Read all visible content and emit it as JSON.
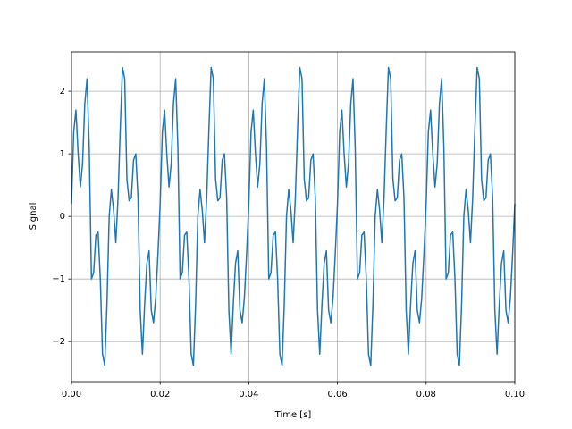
{
  "chart_data": {
    "type": "line",
    "xlabel": "Time [s]",
    "ylabel": "Signal",
    "x": [
      0,
      0.0005,
      0.001,
      0.0015,
      0.002,
      0.0025,
      0.003,
      0.0035,
      0.004,
      0.0045,
      0.005,
      0.0055,
      0.006,
      0.0065,
      0.007,
      0.0075,
      0.008,
      0.0085,
      0.009,
      0.0095,
      0.01,
      0.0105,
      0.011,
      0.0115,
      0.012,
      0.0125,
      0.013,
      0.0135,
      0.014,
      0.0145,
      0.015,
      0.0155,
      0.016,
      0.0165,
      0.017,
      0.0175,
      0.018,
      0.0185,
      0.019,
      0.0195,
      0.02,
      0.0205,
      0.021,
      0.0215,
      0.022,
      0.0225,
      0.023,
      0.0235,
      0.024,
      0.0245,
      0.025,
      0.0255,
      0.026,
      0.0265,
      0.027,
      0.0275,
      0.028,
      0.0285,
      0.029,
      0.0295,
      0.03,
      0.0305,
      0.031,
      0.0315,
      0.032,
      0.0325,
      0.033,
      0.0335,
      0.034,
      0.0345,
      0.035,
      0.0355,
      0.036,
      0.0365,
      0.037,
      0.0375,
      0.038,
      0.0385,
      0.039,
      0.0395,
      0.04,
      0.0405,
      0.041,
      0.0415,
      0.042,
      0.0425,
      0.043,
      0.0435,
      0.044,
      0.0445,
      0.045,
      0.0455,
      0.046,
      0.0465,
      0.047,
      0.0475,
      0.048,
      0.0485,
      0.049,
      0.0495,
      0.05,
      0.0505,
      0.051,
      0.0515,
      0.052,
      0.0525,
      0.053,
      0.0535,
      0.054,
      0.0545,
      0.055,
      0.0555,
      0.056,
      0.0565,
      0.057,
      0.0575,
      0.058,
      0.0585,
      0.059,
      0.0595,
      0.06,
      0.0605,
      0.061,
      0.0615,
      0.062,
      0.0625,
      0.063,
      0.0635,
      0.064,
      0.0645,
      0.065,
      0.0655,
      0.066,
      0.0665,
      0.067,
      0.0675,
      0.068,
      0.0685,
      0.069,
      0.0695,
      0.07,
      0.0705,
      0.071,
      0.0715,
      0.072,
      0.0725,
      0.073,
      0.0735,
      0.074,
      0.0745,
      0.075,
      0.0755,
      0.076,
      0.0765,
      0.077,
      0.0775,
      0.078,
      0.0785,
      0.079,
      0.0795,
      0.08,
      0.0805,
      0.081,
      0.0815,
      0.082,
      0.0825,
      0.083,
      0.0835,
      0.084,
      0.0845,
      0.085,
      0.0855,
      0.086,
      0.0865,
      0.087,
      0.0875,
      0.088,
      0.0885,
      0.089,
      0.0895,
      0.09,
      0.0905,
      0.091,
      0.0915,
      0.092,
      0.0925,
      0.093,
      0.0935,
      0.094,
      0.0945,
      0.095,
      0.0955,
      0.096,
      0.0965,
      0.097,
      0.0975,
      0.098,
      0.0985,
      0.099,
      0.0995,
      0.1
    ],
    "series": [
      {
        "color": "#1f77b4",
        "values": [
          0.2,
          1.35,
          1.7,
          1.0,
          0.47,
          0.85,
          1.8,
          2.2,
          1.1,
          -1.0,
          -0.9,
          -0.3,
          -0.25,
          -1.0,
          -2.2,
          -2.38,
          -1.4,
          0.0,
          0.43,
          0.1,
          -0.42,
          0.3,
          1.4,
          2.38,
          2.2,
          0.6,
          0.25,
          0.3,
          0.9,
          1.0,
          0.3,
          -1.5,
          -2.2,
          -1.4,
          -0.75,
          -0.55,
          -1.5,
          -1.7,
          -1.3,
          -0.6,
          0.2,
          1.35,
          1.7,
          1.0,
          0.47,
          0.85,
          1.8,
          2.2,
          1.1,
          -1.0,
          -0.9,
          -0.3,
          -0.25,
          -1.0,
          -2.2,
          -2.38,
          -1.4,
          0.0,
          0.43,
          0.1,
          -0.42,
          0.3,
          1.4,
          2.38,
          2.2,
          0.6,
          0.25,
          0.3,
          0.9,
          1.0,
          0.3,
          -1.5,
          -2.2,
          -1.4,
          -0.75,
          -0.55,
          -1.5,
          -1.7,
          -1.3,
          -0.6,
          0.2,
          1.35,
          1.7,
          1.0,
          0.47,
          0.85,
          1.8,
          2.2,
          1.1,
          -1.0,
          -0.9,
          -0.3,
          -0.25,
          -1.0,
          -2.2,
          -2.38,
          -1.4,
          0.0,
          0.43,
          0.1,
          -0.42,
          0.3,
          1.4,
          2.38,
          2.2,
          0.6,
          0.25,
          0.3,
          0.9,
          1.0,
          0.3,
          -1.5,
          -2.2,
          -1.4,
          -0.75,
          -0.55,
          -1.5,
          -1.7,
          -1.3,
          -0.6,
          0.2,
          1.35,
          1.7,
          1.0,
          0.47,
          0.85,
          1.8,
          2.2,
          1.1,
          -1.0,
          -0.9,
          -0.3,
          -0.25,
          -1.0,
          -2.2,
          -2.38,
          -1.4,
          0.0,
          0.43,
          0.1,
          -0.42,
          0.3,
          1.4,
          2.38,
          2.2,
          0.6,
          0.25,
          0.3,
          0.9,
          1.0,
          0.3,
          -1.5,
          -2.2,
          -1.4,
          -0.75,
          -0.55,
          -1.5,
          -1.7,
          -1.3,
          -0.6,
          0.2,
          1.35,
          1.7,
          1.0,
          0.47,
          0.85,
          1.8,
          2.2,
          1.1,
          -1.0,
          -0.9,
          -0.3,
          -0.25,
          -1.0,
          -2.2,
          -2.38,
          -1.4,
          0.0,
          0.43,
          0.1,
          -0.42,
          0.3,
          1.4,
          2.38,
          2.2,
          0.6,
          0.25,
          0.3,
          0.9,
          1.0,
          0.3,
          -1.5,
          -2.2,
          -1.4,
          -0.75,
          -0.55,
          -1.5,
          -1.7,
          -1.3,
          -0.6,
          0.2
        ]
      }
    ],
    "xlim": [
      0,
      0.1
    ],
    "xticks": [
      {
        "value": 0,
        "label": "0.00"
      },
      {
        "value": 0.02,
        "label": "0.02"
      },
      {
        "value": 0.04,
        "label": "0.04"
      },
      {
        "value": 0.06,
        "label": "0.06"
      },
      {
        "value": 0.08,
        "label": "0.08"
      },
      {
        "value": 0.1,
        "label": "0.10"
      }
    ],
    "ylim": [
      -2.64,
      2.63
    ],
    "yticks": [
      {
        "value": -2,
        "label": "−2"
      },
      {
        "value": -1,
        "label": "−1"
      },
      0,
      1,
      2
    ],
    "grid": true
  }
}
